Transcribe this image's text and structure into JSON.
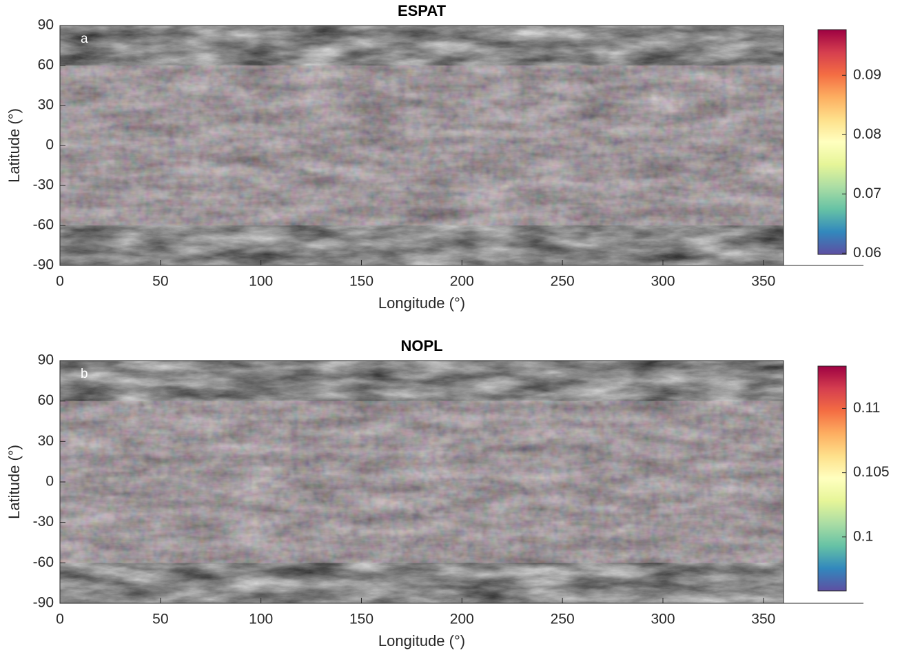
{
  "chart_data": [
    {
      "type": "map",
      "title": "ESPAT",
      "panel_label": "a",
      "x_label": "Longitude (°)",
      "y_label": "Latitude (°)",
      "xlim": [
        0,
        360
      ],
      "xticks": [
        0,
        50,
        100,
        150,
        200,
        250,
        300,
        350
      ],
      "ylim": [
        -90,
        90
      ],
      "yticks": [
        -90,
        -60,
        -30,
        0,
        30,
        60,
        90
      ],
      "colormap": [
        "#5e4fa2",
        "#3288bd",
        "#66c2a5",
        "#abdda4",
        "#e6f598",
        "#ffffbf",
        "#fee08b",
        "#fdae61",
        "#f46d43",
        "#d53e4f",
        "#9e0142"
      ],
      "colorbar_lim": [
        0.0598,
        0.0977
      ],
      "colorbar_ticks": [
        0.06,
        0.07,
        0.08,
        0.09
      ]
    },
    {
      "type": "map",
      "title": "NOPL",
      "panel_label": "b",
      "x_label": "Longitude (°)",
      "y_label": "Latitude (°)",
      "xlim": [
        0,
        360
      ],
      "xticks": [
        0,
        50,
        100,
        150,
        200,
        250,
        300,
        350
      ],
      "ylim": [
        -90,
        90
      ],
      "yticks": [
        -90,
        -60,
        -30,
        0,
        30,
        60,
        90
      ],
      "colormap": [
        "#5e4fa2",
        "#3288bd",
        "#66c2a5",
        "#abdda4",
        "#e6f598",
        "#ffffbf",
        "#fee08b",
        "#fdae61",
        "#f46d43",
        "#d53e4f",
        "#9e0142"
      ],
      "colorbar_lim": [
        0.0958,
        0.1133
      ],
      "colorbar_ticks": [
        0.1,
        0.105,
        0.11
      ]
    }
  ]
}
